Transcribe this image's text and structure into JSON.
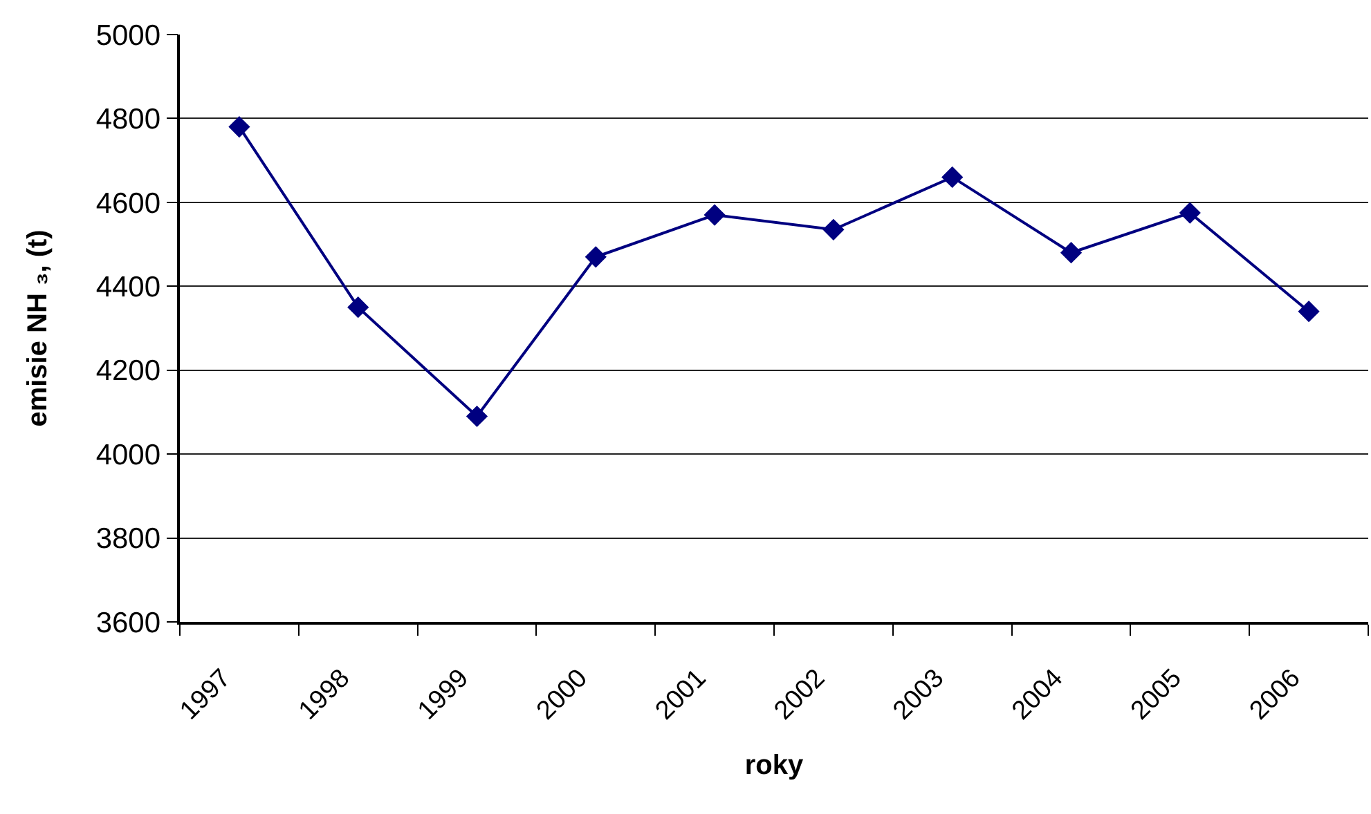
{
  "chart_data": {
    "type": "line",
    "xlabel": "roky",
    "ylabel": "emisie NH ₃, (t)",
    "categories": [
      "1997",
      "1998",
      "1999",
      "2000",
      "2001",
      "2002",
      "2003",
      "2004",
      "2005",
      "2006"
    ],
    "series": [
      {
        "color": "#000080",
        "values": [
          4780,
          4350,
          4090,
          4470,
          4570,
          4535,
          4660,
          4480,
          4575,
          4340
        ]
      }
    ],
    "ylim": [
      3600,
      5000
    ],
    "yticks": [
      3600,
      3800,
      4000,
      4200,
      4400,
      4600,
      4800,
      5000
    ],
    "grid": "y",
    "marker": "diamond",
    "line_style": "solid"
  }
}
